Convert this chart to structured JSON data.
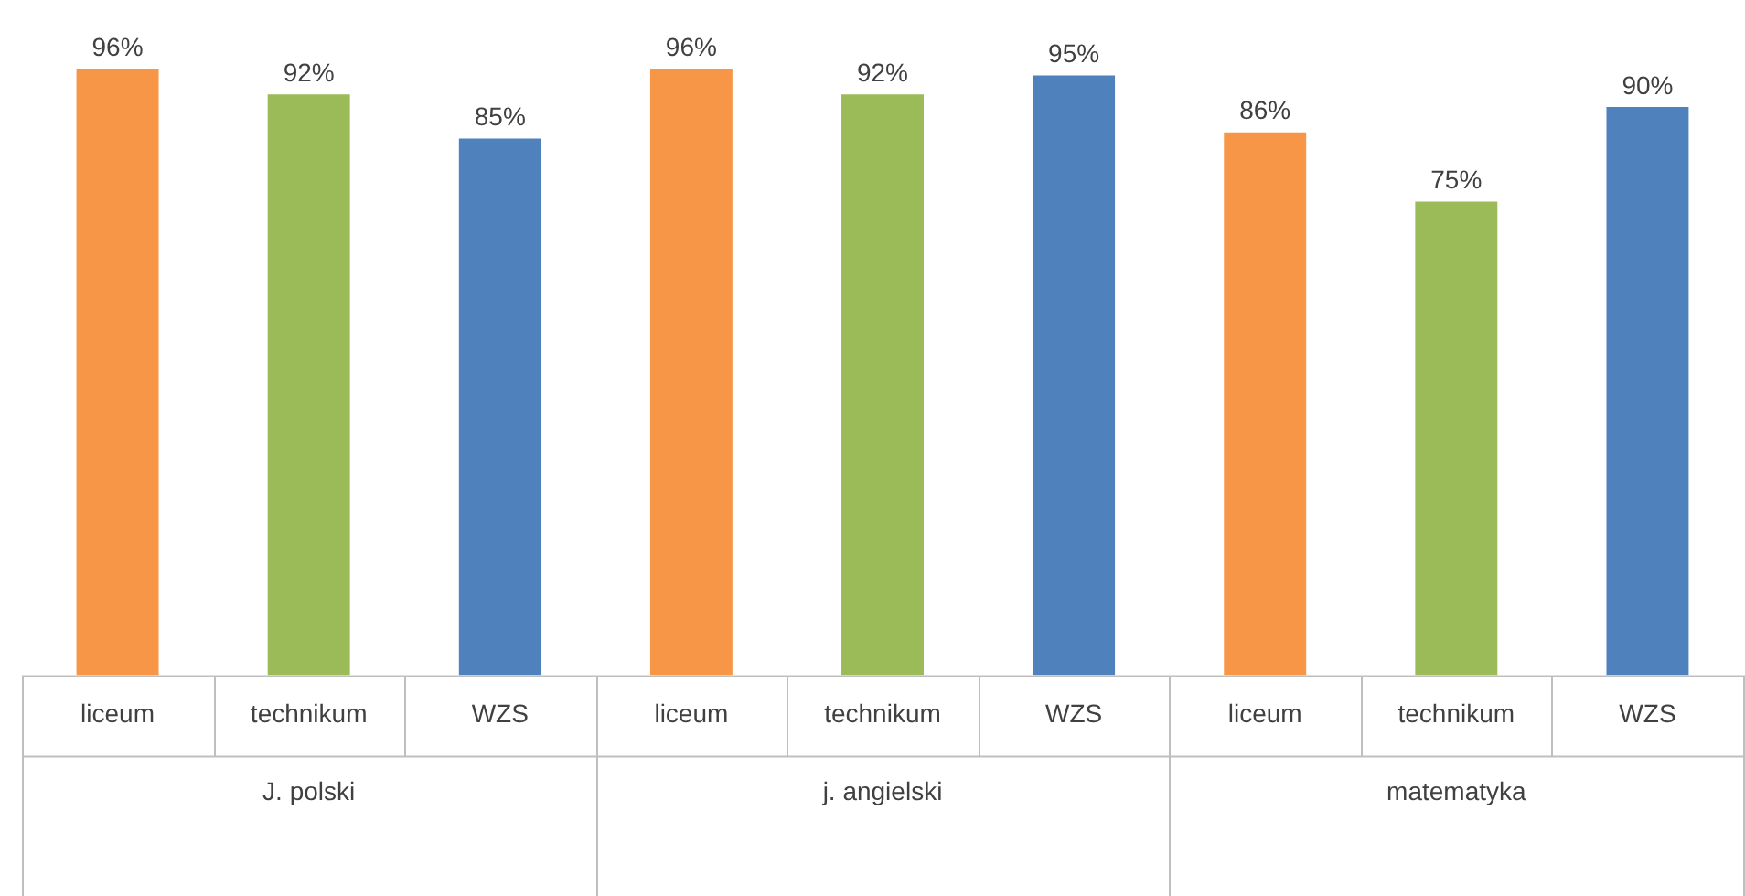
{
  "chart_data": {
    "type": "bar",
    "categories": [
      "J. polski",
      "j. angielski",
      "matematyka"
    ],
    "series": [
      {
        "name": "liceum",
        "color": "#f79646",
        "values": [
          96,
          96,
          86
        ],
        "value_labels": [
          "96%",
          "96%",
          "86%"
        ]
      },
      {
        "name": "technikum",
        "color": "#9bbb59",
        "values": [
          92,
          92,
          75
        ],
        "value_labels": [
          "92%",
          "92%",
          "75%"
        ]
      },
      {
        "name": "WZS",
        "color": "#4f81bd",
        "values": [
          85,
          95,
          90
        ],
        "value_labels": [
          "85%",
          "95%",
          "90%"
        ]
      }
    ],
    "grid": false,
    "legend": false
  }
}
